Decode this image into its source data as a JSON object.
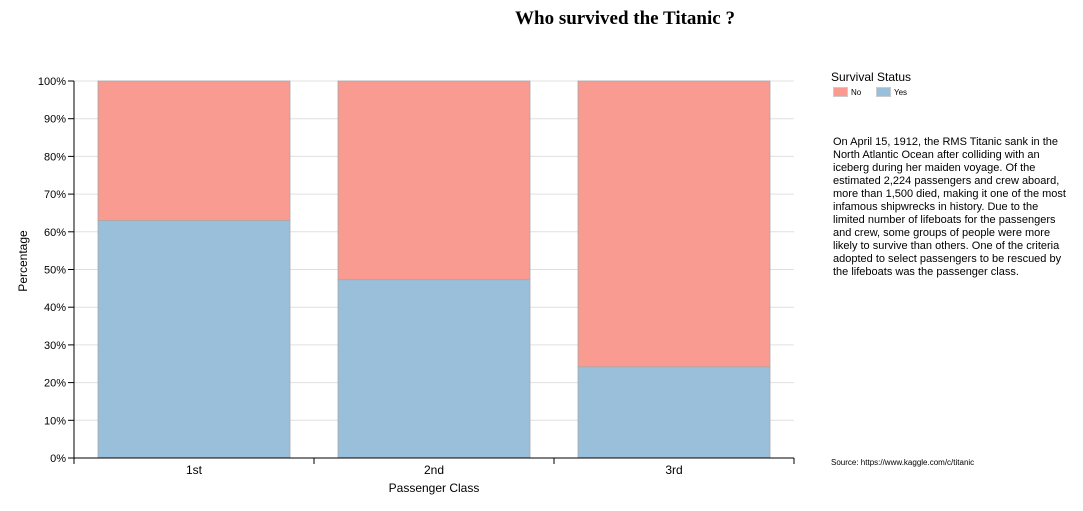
{
  "title": "Who survived the Titanic ?",
  "legend": {
    "title": "Survival Status",
    "no_label": "No",
    "yes_label": "Yes"
  },
  "description": "On April 15, 1912, the RMS Titanic sank in the North Atlantic Ocean after colliding with an iceberg during her maiden voyage. Of the estimated 2,224 passengers and crew aboard, more than 1,500 died, making it one of the most infamous shipwrecks in history. Due to the limited number of lifeboats for the passengers and crew, some groups of people were more likely to survive than others. One of the criteria adopted to select passengers to be rescued by the lifeboats was the passenger class.",
  "source": "Source: https://www.kaggle.com/c/titanic",
  "colors": {
    "no": "#fa9b91",
    "yes": "#9abfdb",
    "grid": "#e0e0e0",
    "axis": "#000000"
  },
  "chart_data": {
    "type": "bar",
    "stacked": true,
    "categories": [
      "1st",
      "2nd",
      "3rd"
    ],
    "series": [
      {
        "name": "Yes",
        "values": [
          63,
          47.3,
          24.2
        ]
      },
      {
        "name": "No",
        "values": [
          37,
          52.7,
          75.8
        ]
      }
    ],
    "xlabel": "Passenger Class",
    "ylabel": "Percentage",
    "ylim": [
      0,
      100
    ],
    "yticks": [
      "0%",
      "10%",
      "20%",
      "30%",
      "40%",
      "50%",
      "60%",
      "70%",
      "80%",
      "90%",
      "100%"
    ],
    "grid": true,
    "legend_position": "top-right"
  }
}
